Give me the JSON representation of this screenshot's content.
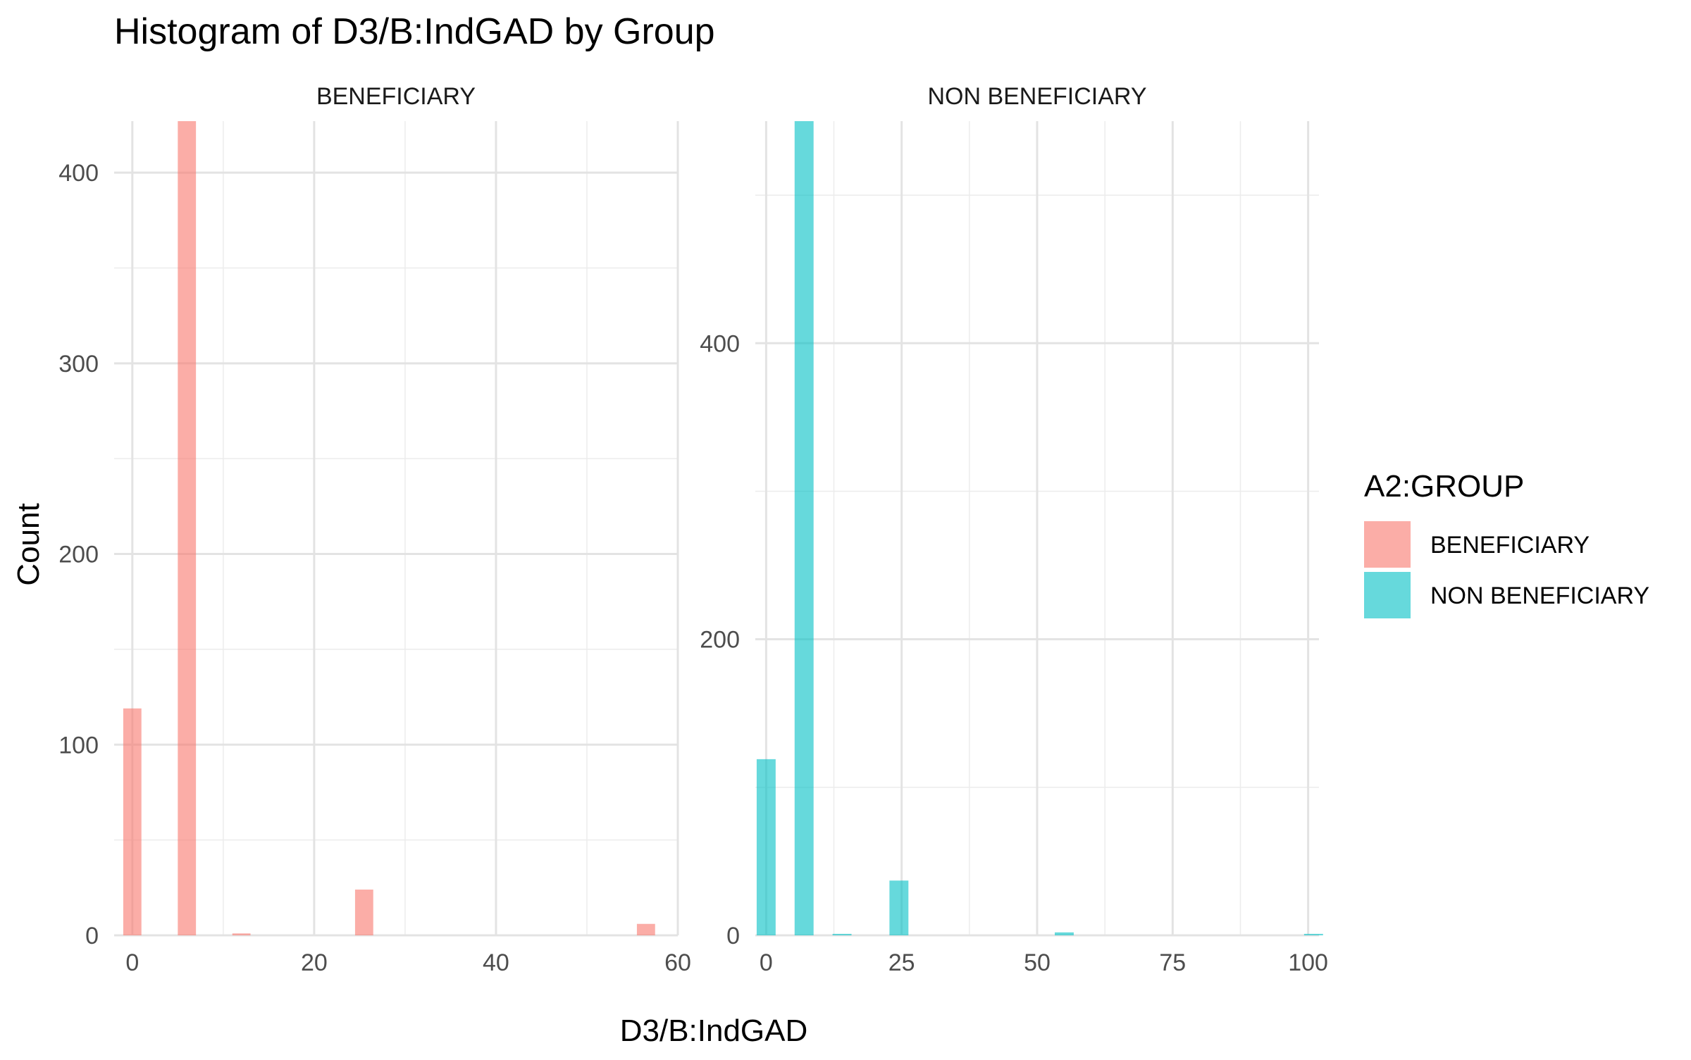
{
  "chart_data": {
    "type": "bar",
    "title": "Histogram of D3/B:IndGAD by Group",
    "xlabel": "D3/B:IndGAD",
    "ylabel": "Count",
    "legend": {
      "title": "A2:GROUP",
      "placement": "right",
      "entries": [
        {
          "label": "BENEFICIARY",
          "color": "#F8766D"
        },
        {
          "label": "NON BENEFICIARY",
          "color": "#00BFC4"
        }
      ]
    },
    "grid": true,
    "panels": [
      {
        "strip": "BENEFICIARY",
        "color": "#F8766D",
        "xlim": [
          -2,
          60
        ],
        "ylim": [
          0,
          427
        ],
        "x_ticks": [
          "0",
          "20",
          "40",
          "60"
        ],
        "y_ticks": [
          "0",
          "100",
          "200",
          "300",
          "400"
        ],
        "bin_width": 2,
        "bins": [
          {
            "x": 0,
            "count": 119
          },
          {
            "x": 6,
            "count": 427
          },
          {
            "x": 12,
            "count": 1
          },
          {
            "x": 25.5,
            "count": 24
          },
          {
            "x": 56.5,
            "count": 6
          }
        ]
      },
      {
        "strip": "NON BENEFICIARY",
        "color": "#00BFC4",
        "xlim": [
          -2,
          102
        ],
        "ylim": [
          0,
          550
        ],
        "x_ticks": [
          "0",
          "25",
          "50",
          "75",
          "100"
        ],
        "y_ticks": [
          "0",
          "200",
          "400"
        ],
        "bin_width": 3.5,
        "bins": [
          {
            "x": 0,
            "count": 119
          },
          {
            "x": 7,
            "count": 550
          },
          {
            "x": 14,
            "count": 1
          },
          {
            "x": 24.5,
            "count": 37
          },
          {
            "x": 55,
            "count": 2
          },
          {
            "x": 101,
            "count": 1
          }
        ]
      }
    ]
  }
}
